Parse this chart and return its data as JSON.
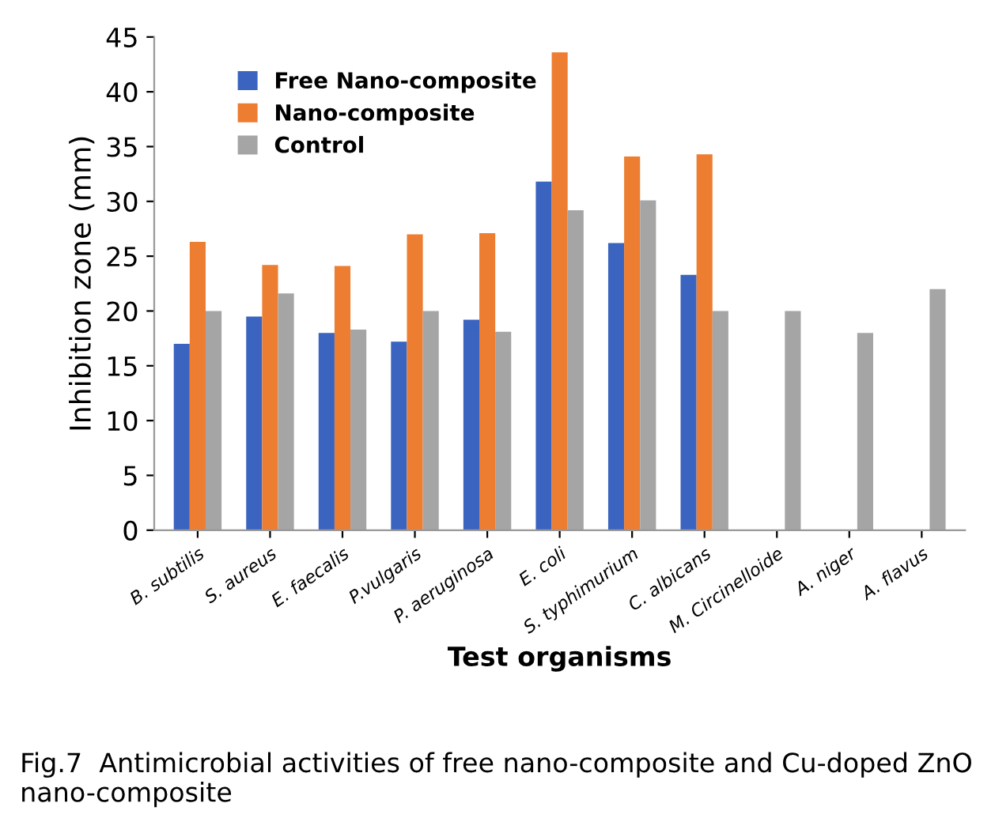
{
  "chart_data": {
    "type": "bar",
    "xlabel": "Test organisms",
    "ylabel": "Inhibition zone (mm)",
    "categories": [
      "B. subtilis",
      "S. aureus",
      "E. faecalis",
      "P.vulgaris",
      "P. aeruginosa",
      "E. coli",
      "S. typhimurium",
      "C. albicans",
      "M. Circinelloide",
      "A. niger",
      "A. flavus"
    ],
    "series": [
      {
        "name": "Free Nano-composite",
        "color": "#3a64c0",
        "values": [
          17,
          19.5,
          18,
          17.2,
          19.2,
          31.8,
          26.2,
          23.3,
          0,
          0,
          0
        ]
      },
      {
        "name": "Nano-composite",
        "color": "#ed7d31",
        "values": [
          26.3,
          24.2,
          24.1,
          27,
          27.1,
          43.6,
          34.1,
          34.3,
          0,
          0,
          0
        ]
      },
      {
        "name": "Control",
        "color": "#a5a5a5",
        "values": [
          20,
          21.6,
          18.3,
          20,
          18.1,
          29.2,
          30.1,
          20,
          20,
          18,
          22
        ]
      }
    ],
    "ylim": [
      0,
      45
    ],
    "yticks": [
      0,
      5,
      10,
      15,
      20,
      25,
      30,
      35,
      40,
      45
    ],
    "grid": false,
    "legend": "top left",
    "annotations": [
      "Fig.7  Antimicrobial activities of free nano-composite and Cu-doped ZnO nano-composite"
    ]
  }
}
